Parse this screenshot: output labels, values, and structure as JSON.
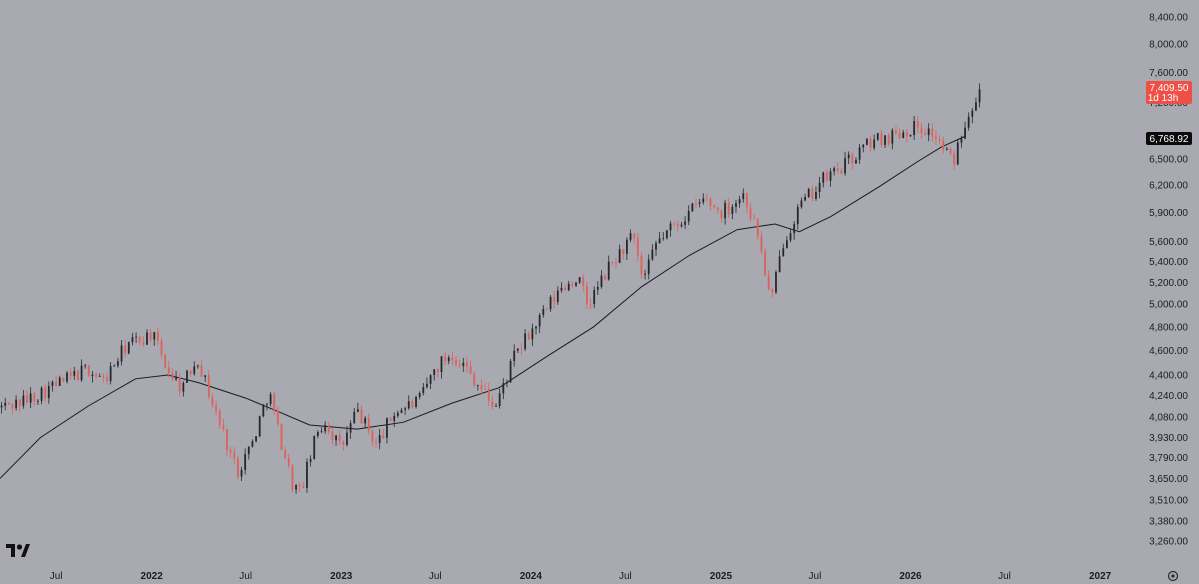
{
  "chart_data": {
    "type": "candlestick",
    "y_scale": "log",
    "ylim": [
      3150,
      8600
    ],
    "y_ticks": [
      "8,400.00",
      "8,000.00",
      "7,600.00",
      "7,200.00",
      "6,500.00",
      "6,200.00",
      "5,900.00",
      "5,600.00",
      "5,400.00",
      "5,200.00",
      "5,000.00",
      "4,800.00",
      "4,600.00",
      "4,400.00",
      "4,240.00",
      "4,080.00",
      "3,930.00",
      "3,790.00",
      "3,650.00",
      "3,510.00",
      "3,380.00",
      "3,260.00"
    ],
    "x_ticks": [
      "Jul",
      "2022",
      "Jul",
      "2023",
      "Jul",
      "2024",
      "Jul",
      "2025",
      "Jul",
      "2026",
      "Jul",
      "2027"
    ],
    "xlim": [
      "2021-03-15",
      "2027-03-15"
    ],
    "last_price": {
      "label": "7,409.50",
      "sub": "1d 13h",
      "value": 7409.5
    },
    "moving_average_label": {
      "label": "6,768.92",
      "value": 6768.92
    },
    "moving_average": [
      {
        "date": "2021-03-15",
        "value": 3650
      },
      {
        "date": "2021-06-01",
        "value": 3930
      },
      {
        "date": "2021-09-01",
        "value": 4160
      },
      {
        "date": "2021-12-01",
        "value": 4370
      },
      {
        "date": "2022-02-01",
        "value": 4400
      },
      {
        "date": "2022-04-01",
        "value": 4340
      },
      {
        "date": "2022-07-01",
        "value": 4220
      },
      {
        "date": "2022-09-01",
        "value": 4120
      },
      {
        "date": "2022-11-01",
        "value": 4020
      },
      {
        "date": "2023-02-01",
        "value": 3990
      },
      {
        "date": "2023-05-01",
        "value": 4040
      },
      {
        "date": "2023-08-01",
        "value": 4180
      },
      {
        "date": "2023-11-01",
        "value": 4300
      },
      {
        "date": "2024-02-01",
        "value": 4550
      },
      {
        "date": "2024-05-01",
        "value": 4800
      },
      {
        "date": "2024-08-01",
        "value": 5160
      },
      {
        "date": "2024-11-01",
        "value": 5460
      },
      {
        "date": "2025-02-01",
        "value": 5720
      },
      {
        "date": "2025-04-15",
        "value": 5780
      },
      {
        "date": "2025-06-01",
        "value": 5700
      },
      {
        "date": "2025-08-01",
        "value": 5860
      },
      {
        "date": "2025-11-01",
        "value": 6180
      },
      {
        "date": "2026-01-15",
        "value": 6470
      },
      {
        "date": "2026-03-01",
        "value": 6640
      },
      {
        "date": "2026-04-15",
        "value": 6768.92
      }
    ],
    "price_path": [
      {
        "date": "2021-03-15",
        "value": 4150
      },
      {
        "date": "2021-05-01",
        "value": 4200
      },
      {
        "date": "2021-07-15",
        "value": 4350
      },
      {
        "date": "2021-09-01",
        "value": 4450
      },
      {
        "date": "2021-10-01",
        "value": 4350
      },
      {
        "date": "2021-11-15",
        "value": 4650
      },
      {
        "date": "2021-12-15",
        "value": 4700
      },
      {
        "date": "2022-01-01",
        "value": 4750
      },
      {
        "date": "2022-02-01",
        "value": 4450
      },
      {
        "date": "2022-03-01",
        "value": 4300
      },
      {
        "date": "2022-03-30",
        "value": 4550
      },
      {
        "date": "2022-05-01",
        "value": 4150
      },
      {
        "date": "2022-06-15",
        "value": 3700
      },
      {
        "date": "2022-07-15",
        "value": 3900
      },
      {
        "date": "2022-08-15",
        "value": 4280
      },
      {
        "date": "2022-09-01",
        "value": 4000
      },
      {
        "date": "2022-10-01",
        "value": 3600
      },
      {
        "date": "2022-10-15",
        "value": 3560
      },
      {
        "date": "2022-11-15",
        "value": 3950
      },
      {
        "date": "2022-12-01",
        "value": 4050
      },
      {
        "date": "2023-01-01",
        "value": 3850
      },
      {
        "date": "2023-02-01",
        "value": 4130
      },
      {
        "date": "2023-03-10",
        "value": 3880
      },
      {
        "date": "2023-04-15",
        "value": 4120
      },
      {
        "date": "2023-06-01",
        "value": 4200
      },
      {
        "date": "2023-07-01",
        "value": 4450
      },
      {
        "date": "2023-08-01",
        "value": 4580
      },
      {
        "date": "2023-09-01",
        "value": 4450
      },
      {
        "date": "2023-10-25",
        "value": 4150
      },
      {
        "date": "2023-12-01",
        "value": 4550
      },
      {
        "date": "2024-01-01",
        "value": 4750
      },
      {
        "date": "2024-03-01",
        "value": 5150
      },
      {
        "date": "2024-04-01",
        "value": 5250
      },
      {
        "date": "2024-04-20",
        "value": 4990
      },
      {
        "date": "2024-06-01",
        "value": 5350
      },
      {
        "date": "2024-07-15",
        "value": 5650
      },
      {
        "date": "2024-08-05",
        "value": 5200
      },
      {
        "date": "2024-09-01",
        "value": 5600
      },
      {
        "date": "2024-10-01",
        "value": 5750
      },
      {
        "date": "2024-12-01",
        "value": 6050
      },
      {
        "date": "2025-01-01",
        "value": 5900
      },
      {
        "date": "2025-02-15",
        "value": 6100
      },
      {
        "date": "2025-03-15",
        "value": 5650
      },
      {
        "date": "2025-04-08",
        "value": 5000
      },
      {
        "date": "2025-05-01",
        "value": 5600
      },
      {
        "date": "2025-06-01",
        "value": 5950
      },
      {
        "date": "2025-07-15",
        "value": 6250
      },
      {
        "date": "2025-09-01",
        "value": 6450
      },
      {
        "date": "2025-10-15",
        "value": 6700
      },
      {
        "date": "2025-12-01",
        "value": 6800
      },
      {
        "date": "2026-01-15",
        "value": 6900
      },
      {
        "date": "2026-02-15",
        "value": 6800
      },
      {
        "date": "2026-03-25",
        "value": 6450
      },
      {
        "date": "2026-04-10",
        "value": 6850
      },
      {
        "date": "2026-05-01",
        "value": 7200
      },
      {
        "date": "2026-05-15",
        "value": 7409.5
      }
    ]
  },
  "colors": {
    "background": "#a8a9b1",
    "bull": "#26272c",
    "bear": "#e0605a",
    "ma_line": "#1a1b1f",
    "last_tag_bg": "#ef5045",
    "ma_tag_bg": "#0b0b0e",
    "tag_text": "#ffffff",
    "axis_text": "#1c1d22"
  },
  "icons": {
    "logo": "tradingview-logo",
    "settings": "settings-icon"
  }
}
